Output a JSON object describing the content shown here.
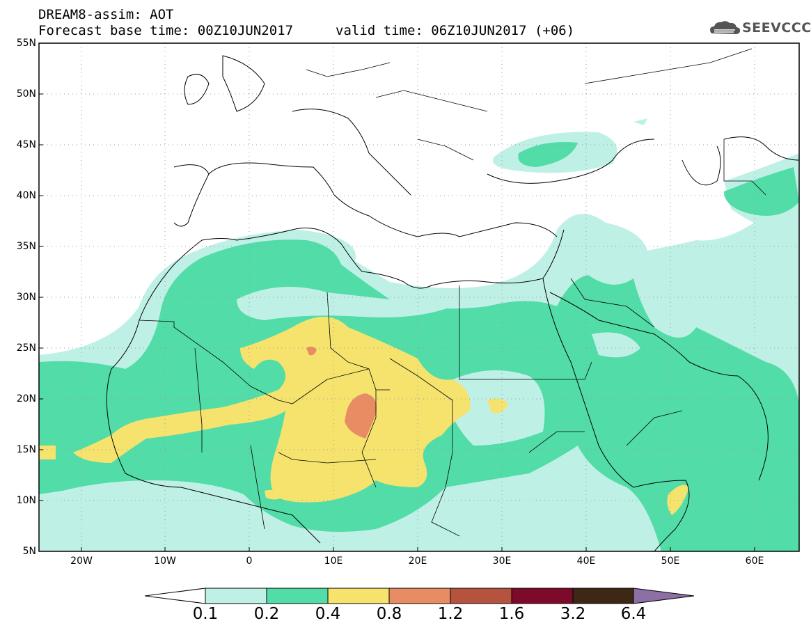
{
  "header": {
    "line1": "DREAM8-assim: AOT",
    "line2": "Forecast base time: 00Z10JUN2017",
    "valid": "valid time: 06Z10JUN2017 (+06)",
    "logo_text": "SEEVCCC",
    "logo_icon": "cloud-icon"
  },
  "axes": {
    "lat_labels": [
      "55N",
      "50N",
      "45N",
      "40N",
      "35N",
      "30N",
      "25N",
      "20N",
      "15N",
      "10N",
      "5N"
    ],
    "lat_values": [
      55,
      50,
      45,
      40,
      35,
      30,
      25,
      20,
      15,
      10,
      5
    ],
    "lon_labels": [
      "20W",
      "10W",
      "0",
      "10E",
      "20E",
      "30E",
      "40E",
      "50E",
      "60E"
    ],
    "lon_values": [
      -20,
      -10,
      0,
      10,
      20,
      30,
      40,
      50,
      60
    ],
    "lon_range": [
      -25,
      65
    ],
    "lat_range": [
      5,
      55
    ],
    "grid": "dotted"
  },
  "colorbar": {
    "labels": [
      "0.1",
      "0.2",
      "0.4",
      "0.8",
      "1.2",
      "1.6",
      "3.2",
      "6.4"
    ],
    "colors": [
      "#ffffff",
      "#bff0e6",
      "#52dca8",
      "#f5e36e",
      "#e88c64",
      "#b5533f",
      "#7d0a2a",
      "#3c2814",
      "#8b6fa5"
    ]
  },
  "chart_data": {
    "type": "heatmap",
    "title": "DREAM8-assim: AOT",
    "xlabel": "",
    "ylabel": "",
    "xlim": [
      -25,
      65
    ],
    "ylim": [
      5,
      55
    ],
    "levels": [
      0.1,
      0.2,
      0.4,
      0.8,
      1.2,
      1.6,
      3.2,
      6.4
    ],
    "legend": "bottom"
  }
}
